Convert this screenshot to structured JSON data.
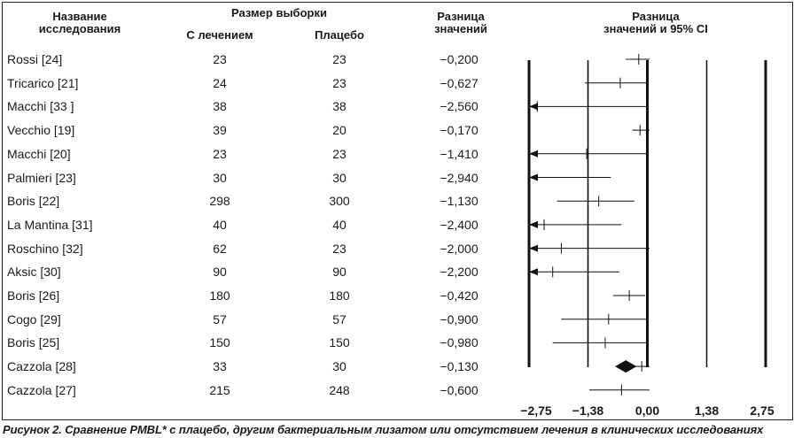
{
  "headers": {
    "study": "Название\nисследования",
    "sample_size": "Размер выборки",
    "treated": "С лечением",
    "placebo": "Плацебо",
    "diff": "Разница\nзначений",
    "diff_ci": "Разница\nзначений и 95% CI"
  },
  "rows": [
    {
      "name": "Rossi [24]",
      "treated": "23",
      "placebo": "23",
      "diff": "−0,200"
    },
    {
      "name": "Tricarico [21]",
      "treated": "24",
      "placebo": "23",
      "diff": "−0,627"
    },
    {
      "name": "Macchi [33 ]",
      "treated": "38",
      "placebo": "38",
      "diff": "−2,560"
    },
    {
      "name": "Vecchio [19]",
      "treated": "39",
      "placebo": "20",
      "diff": "−0,170"
    },
    {
      "name": "Macchi [20]",
      "treated": "23",
      "placebo": "23",
      "diff": "−1,410"
    },
    {
      "name": "Palmieri [23]",
      "treated": "30",
      "placebo": "30",
      "diff": "−2,940"
    },
    {
      "name": "Boris [22]",
      "treated": "298",
      "placebo": "300",
      "diff": "−1,130"
    },
    {
      "name": "La Mantina [31]",
      "treated": "40",
      "placebo": "40",
      "diff": "−2,400"
    },
    {
      "name": "Roschino [32]",
      "treated": "62",
      "placebo": "23",
      "diff": "−2,000"
    },
    {
      "name": "Aksic [30]",
      "treated": "90",
      "placebo": "90",
      "diff": "−2,200"
    },
    {
      "name": "Boris [26]",
      "treated": "180",
      "placebo": "180",
      "diff": "−0,420"
    },
    {
      "name": "Cogo [29]",
      "treated": "57",
      "placebo": "57",
      "diff": "−0,900"
    },
    {
      "name": "Boris [25]",
      "treated": "150",
      "placebo": "150",
      "diff": "−0,980"
    },
    {
      "name": "Cazzola [28]",
      "treated": "33",
      "placebo": "30",
      "diff": "−0,130"
    },
    {
      "name": "Cazzola [27]",
      "treated": "215",
      "placebo": "248",
      "diff": "−0,600"
    }
  ],
  "chart_data": {
    "type": "forest",
    "xlim": [
      -2.75,
      2.75
    ],
    "x_ticks": [
      -2.75,
      -1.38,
      0,
      1.38,
      2.75
    ],
    "x_tick_labels": [
      "−2,75",
      "−1,38",
      "0,00",
      "1,38",
      "2,75"
    ],
    "studies": [
      {
        "name": "Rossi [24]",
        "estimate": -0.2,
        "ci_low": -0.5,
        "ci_high": 0.05
      },
      {
        "name": "Tricarico [21]",
        "estimate": -0.63,
        "ci_low": -1.45,
        "ci_high": 0.0
      },
      {
        "name": "Macchi [33 ]",
        "estimate": -2.56,
        "ci_low": -2.75,
        "ci_high": 0.0,
        "lower_arrow": true
      },
      {
        "name": "Vecchio [19]",
        "estimate": -0.17,
        "ci_low": -0.35,
        "ci_high": 0.05
      },
      {
        "name": "Macchi [20]",
        "estimate": -1.41,
        "ci_low": -2.75,
        "ci_high": 0.0,
        "lower_arrow": true
      },
      {
        "name": "Palmieri [23]",
        "estimate": -2.94,
        "ci_low": -2.75,
        "ci_high": -0.85,
        "lower_arrow": true,
        "point_off_scale": true
      },
      {
        "name": "Boris [22]",
        "estimate": -1.13,
        "ci_low": -2.1,
        "ci_high": -0.3
      },
      {
        "name": "La Mantina [31]",
        "estimate": -2.4,
        "ci_low": -2.75,
        "ci_high": -0.6,
        "lower_arrow": true
      },
      {
        "name": "Roschino [32]",
        "estimate": -2.0,
        "ci_low": -2.75,
        "ci_high": 0.05,
        "lower_arrow": true
      },
      {
        "name": "Aksic [30]",
        "estimate": -2.2,
        "ci_low": -2.75,
        "ci_high": -0.65,
        "lower_arrow": true
      },
      {
        "name": "Boris [26]",
        "estimate": -0.42,
        "ci_low": -0.8,
        "ci_high": -0.05
      },
      {
        "name": "Cogo [29]",
        "estimate": -0.9,
        "ci_low": -2.0,
        "ci_high": 0.0
      },
      {
        "name": "Boris [25]",
        "estimate": -0.98,
        "ci_low": -2.2,
        "ci_high": 0.0
      },
      {
        "name": "Cazzola [28]",
        "estimate": -0.13,
        "ci_low": -0.3,
        "ci_high": 0.05
      },
      {
        "name": "Cazzola [27]",
        "estimate": -0.6,
        "ci_low": -1.35,
        "ci_high": 0.05
      }
    ],
    "pooled": {
      "estimate": -0.5,
      "ci_low": -0.75,
      "ci_high": -0.25
    }
  },
  "caption": "Рисунок 2. Сравнение PMBL* с плацебо, другим бактериальным лизатом или отсутствием лечения в клинических исследованиях"
}
